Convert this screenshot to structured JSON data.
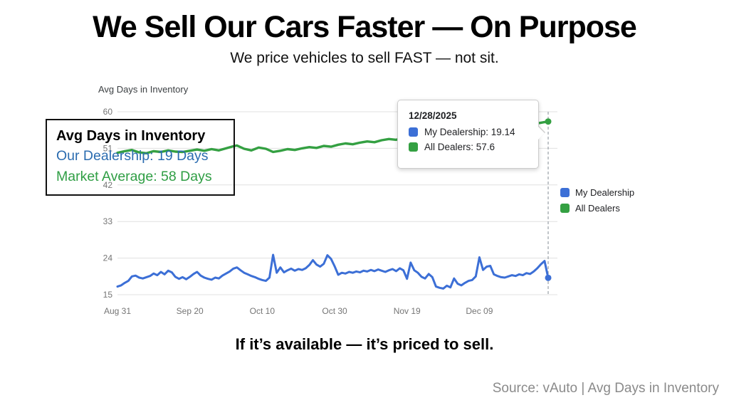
{
  "header": {
    "title": "We Sell Our Cars Faster — On Purpose",
    "subtitle": "We price vehicles to sell FAST — not sit."
  },
  "callout": {
    "title": "Avg Days in Inventory",
    "our": "Our Dealership: 19 Days",
    "our_color": "#2b6cb0",
    "market": "Market Average: 58 Days",
    "market_color": "#2f9e44"
  },
  "footer": {
    "tagline": "If it’s available — it’s priced to sell.",
    "source": "Source: vAuto | Avg Days in Inventory"
  },
  "chart_data": {
    "type": "line",
    "title": "Avg Days in Inventory",
    "xlabel": "",
    "ylabel": "",
    "ylim": [
      15,
      60
    ],
    "yticks": [
      15,
      24,
      33,
      42,
      51,
      60
    ],
    "x_domain_days": [
      0,
      119
    ],
    "xticks": [
      {
        "day": 0,
        "label": "Aug 31"
      },
      {
        "day": 20,
        "label": "Sep 20"
      },
      {
        "day": 40,
        "label": "Oct 10"
      },
      {
        "day": 60,
        "label": "Oct 30"
      },
      {
        "day": 80,
        "label": "Nov 19"
      },
      {
        "day": 100,
        "label": "Dec 09"
      }
    ],
    "grid": true,
    "legend_position": "right",
    "crosshair_day": 119,
    "grid_color": "#e0e0e0",
    "axis_label_color": "#757575",
    "crosshair_color": "#9aa0a6",
    "series": [
      {
        "name": "My Dealership",
        "color": "#3c6fd6",
        "end_dot": true,
        "values": [
          17.0,
          17.3,
          17.9,
          18.4,
          19.5,
          19.7,
          19.2,
          19.0,
          19.3,
          19.6,
          20.2,
          19.8,
          20.6,
          20.0,
          20.9,
          20.5,
          19.4,
          18.9,
          19.3,
          18.8,
          19.4,
          20.1,
          20.6,
          19.7,
          19.2,
          18.9,
          18.7,
          19.2,
          19.0,
          19.7,
          20.2,
          20.7,
          21.4,
          21.7,
          21.0,
          20.4,
          20.0,
          19.6,
          19.3,
          18.9,
          18.6,
          18.4,
          19.2,
          24.8,
          20.4,
          21.7,
          20.5,
          21.0,
          21.4,
          20.9,
          21.3,
          21.1,
          21.5,
          22.3,
          23.5,
          22.4,
          21.9,
          22.6,
          24.7,
          23.8,
          22.0,
          19.9,
          20.4,
          20.2,
          20.6,
          20.4,
          20.7,
          20.5,
          20.9,
          20.7,
          21.1,
          20.8,
          21.2,
          20.9,
          20.6,
          21.0,
          21.3,
          20.8,
          21.5,
          21.0,
          18.9,
          22.9,
          21.0,
          20.4,
          19.4,
          19.0,
          20.1,
          19.3,
          17.0,
          16.7,
          16.5,
          17.2,
          16.8,
          19.0,
          17.7,
          17.3,
          17.9,
          18.4,
          18.6,
          19.5,
          24.2,
          21.1,
          21.9,
          22.1,
          20.0,
          19.6,
          19.3,
          19.2,
          19.5,
          19.8,
          19.6,
          20.0,
          19.8,
          20.3,
          20.1,
          20.7,
          21.5,
          22.5,
          23.3,
          19.14
        ]
      },
      {
        "name": "All Dealers",
        "color": "#34a042",
        "end_dot": true,
        "points": [
          [
            0,
            49.9
          ],
          [
            2,
            50.3
          ],
          [
            4,
            50.6
          ],
          [
            6,
            50.0
          ],
          [
            8,
            49.8
          ],
          [
            10,
            50.3
          ],
          [
            12,
            50.1
          ],
          [
            14,
            50.5
          ],
          [
            16,
            50.2
          ],
          [
            18,
            50.1
          ],
          [
            20,
            50.4
          ],
          [
            22,
            50.7
          ],
          [
            24,
            50.4
          ],
          [
            26,
            50.8
          ],
          [
            28,
            50.5
          ],
          [
            30,
            51.0
          ],
          [
            32,
            51.5
          ],
          [
            33,
            51.7
          ],
          [
            35,
            50.9
          ],
          [
            37,
            50.5
          ],
          [
            39,
            51.2
          ],
          [
            41,
            50.9
          ],
          [
            43,
            50.1
          ],
          [
            45,
            50.4
          ],
          [
            47,
            50.8
          ],
          [
            49,
            50.6
          ],
          [
            51,
            51.0
          ],
          [
            53,
            51.3
          ],
          [
            55,
            51.1
          ],
          [
            57,
            51.6
          ],
          [
            59,
            51.4
          ],
          [
            61,
            51.9
          ],
          [
            63,
            52.2
          ],
          [
            65,
            52.0
          ],
          [
            67,
            52.4
          ],
          [
            69,
            52.7
          ],
          [
            71,
            52.5
          ],
          [
            73,
            53.0
          ],
          [
            75,
            53.3
          ],
          [
            77,
            53.1
          ],
          [
            79,
            53.6
          ],
          [
            81,
            53.9
          ],
          [
            83,
            53.7
          ],
          [
            85,
            54.1
          ],
          [
            87,
            54.4
          ],
          [
            89,
            54.2
          ],
          [
            91,
            54.7
          ],
          [
            93,
            55.0
          ],
          [
            95,
            54.8
          ],
          [
            97,
            55.3
          ],
          [
            99,
            55.6
          ],
          [
            101,
            55.4
          ],
          [
            103,
            55.9
          ],
          [
            105,
            56.2
          ],
          [
            107,
            56.0
          ],
          [
            109,
            56.4
          ],
          [
            111,
            56.7
          ],
          [
            113,
            56.5
          ],
          [
            115,
            57.0
          ],
          [
            117,
            57.3
          ],
          [
            119,
            57.6
          ]
        ]
      }
    ],
    "tooltip": {
      "date": "12/28/2025",
      "rows": [
        {
          "text": "My Dealership: 19.14"
        },
        {
          "text": "All Dealers: 57.6"
        }
      ]
    }
  }
}
